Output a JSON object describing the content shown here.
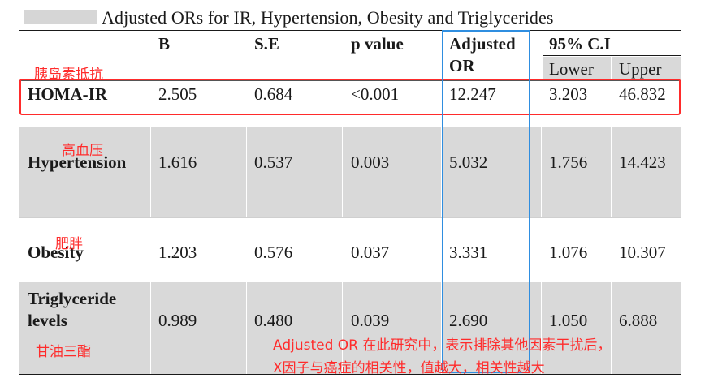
{
  "caption": "Adjusted ORs for IR, Hypertension, Obesity and Triglycerides",
  "columns": {
    "b": "B",
    "se": "S.E",
    "p": "p value",
    "adj_line1": "Adjusted",
    "adj_line2": "OR",
    "ci": "95% C.I",
    "lower": "Lower",
    "upper": "Upper"
  },
  "rows": [
    {
      "label": "HOMA-IR",
      "b": "2.505",
      "se": "0.684",
      "p": "<0.001",
      "or": "12.247",
      "lower": "3.203",
      "upper": "46.832",
      "note": "胰岛素抵抗"
    },
    {
      "label": "Hypertension",
      "b": "1.616",
      "se": "0.537",
      "p": "0.003",
      "or": "5.032",
      "lower": "1.756",
      "upper": "14.423",
      "note": "高血压"
    },
    {
      "label": "Obesity",
      "b": "1.203",
      "se": "0.576",
      "p": "0.037",
      "or": "3.331",
      "lower": "1.076",
      "upper": "10.307",
      "note": "肥胖"
    },
    {
      "label_line1": "Triglyceride",
      "label_line2": "levels",
      "b": "0.989",
      "se": "0.480",
      "p": "0.039",
      "or": "2.690",
      "lower": "1.050",
      "upper": "6.888",
      "note": "甘油三酯"
    }
  ],
  "annotation": {
    "line1": "Adjusted OR 在此研究中，表示排除其他因素干扰后，",
    "line2": "X因子与癌症的相关性，值越大，相关性越大"
  },
  "colors": {
    "highlight_red": "#ff2b2b",
    "highlight_blue": "#2f8ee0",
    "shade": "#d9d9d9"
  }
}
